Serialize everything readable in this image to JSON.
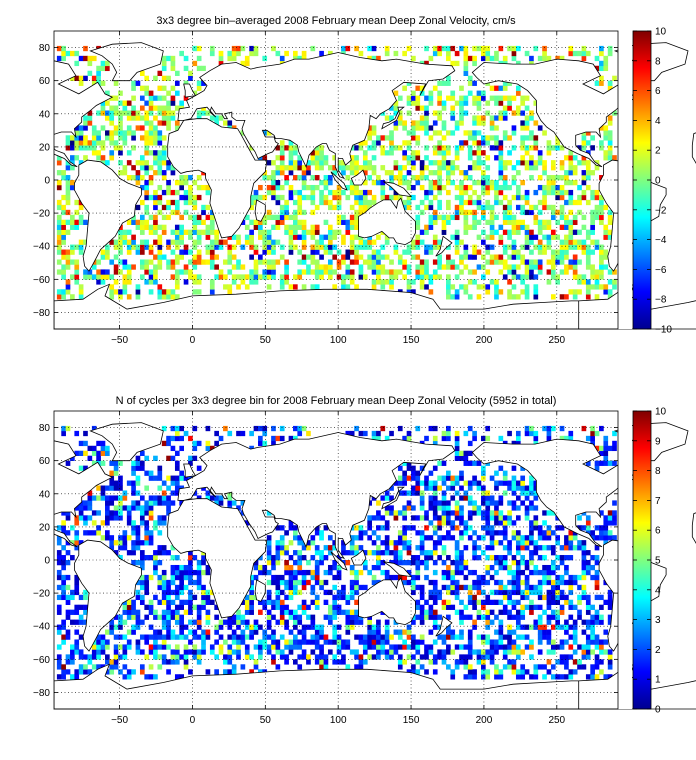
{
  "panels": [
    {
      "id": "velocity",
      "title": "3x3 degree bin–averaged 2008 February mean Deep Zonal Velocity, cm/s",
      "colorbar": {
        "min": -10,
        "max": 10,
        "tick_labels": [
          "10",
          "8",
          "6",
          "4",
          "2",
          "0",
          "−2",
          "−4",
          "−6",
          "−8",
          "−10"
        ],
        "tick_values": [
          10,
          8,
          6,
          4,
          2,
          0,
          -2,
          -4,
          -6,
          -8,
          -10
        ]
      },
      "seed": 17,
      "style": "velocity"
    },
    {
      "id": "cycles",
      "title": "N of cycles per 3x3 degree bin for 2008 February mean Deep Zonal Velocity (5952 in total)",
      "colorbar": {
        "min": 0,
        "max": 10,
        "tick_labels": [
          "10",
          "9",
          "8",
          "7",
          "6",
          "5",
          "4",
          "3",
          "2",
          "1",
          "0"
        ],
        "tick_values": [
          10,
          9,
          8,
          7,
          6,
          5,
          4,
          3,
          2,
          1,
          0
        ]
      },
      "seed": 91,
      "style": "counts"
    }
  ],
  "axes": {
    "xlim": [
      -95,
      292
    ],
    "ylim": [
      -90,
      90
    ],
    "xtick_values": [
      -50,
      0,
      50,
      100,
      150,
      200,
      250
    ],
    "xtick_labels": [
      "−50",
      "0",
      "50",
      "100",
      "150",
      "200",
      "250"
    ],
    "ytick_values": [
      80,
      60,
      40,
      20,
      0,
      -20,
      -40,
      -60,
      -80
    ],
    "ytick_labels": [
      "80",
      "60",
      "40",
      "20",
      "0",
      "−20",
      "−40",
      "−60",
      "−80"
    ],
    "grid": "dotted",
    "bin_size_degrees": 3
  },
  "colormap": "jet"
}
